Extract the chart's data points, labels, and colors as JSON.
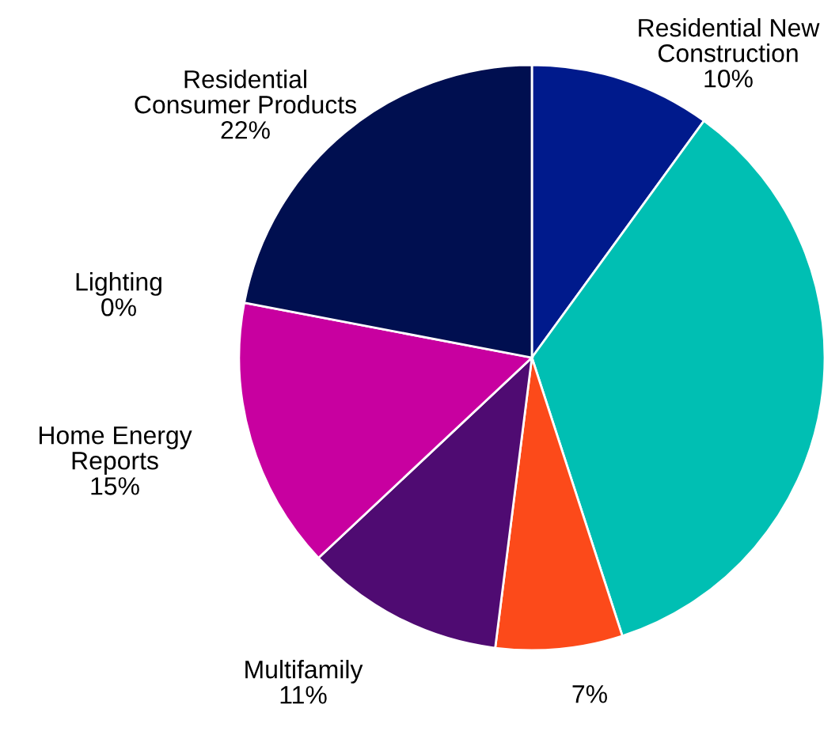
{
  "chart_data": {
    "type": "pie",
    "categories": [
      "Residential New\nConstruction",
      null,
      null,
      "Multifamily",
      "Home Energy\nReports",
      "Lighting",
      "Residential\nConsumer Products"
    ],
    "values": [
      10,
      35,
      7,
      11,
      15,
      0,
      22
    ],
    "value_labels": [
      "10%",
      null,
      "7%",
      "11%",
      "15%",
      "0%",
      "22%"
    ],
    "colors": [
      "#001a8c",
      "#00bfb3",
      "#fc4a1a",
      "#4f0b72",
      "#c800a0",
      "#3a6fd8",
      "#000f50"
    ],
    "legend": false
  }
}
